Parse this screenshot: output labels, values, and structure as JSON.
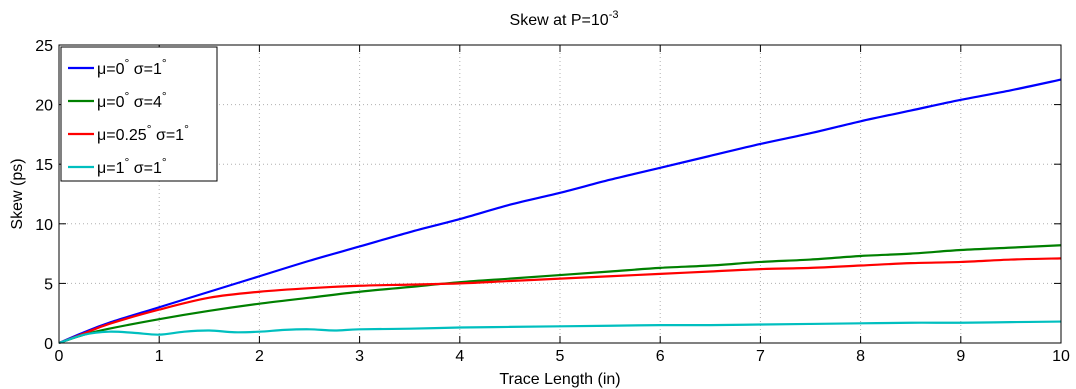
{
  "chart_data": {
    "type": "line",
    "title": {
      "main": "Skew at P=10",
      "exponent": "-3"
    },
    "xlabel": "Trace Length (in)",
    "ylabel": "Skew (ps)",
    "xlim": [
      0,
      10
    ],
    "ylim": [
      0,
      25
    ],
    "xticks": [
      0,
      1,
      2,
      3,
      4,
      5,
      6,
      7,
      8,
      9,
      10
    ],
    "yticks": [
      0,
      5,
      10,
      15,
      20,
      25
    ],
    "grid": true,
    "legend_position": "top-left",
    "series": [
      {
        "name": "μ=0° σ=1°",
        "legend": {
          "mu": "0",
          "sigma": "1"
        },
        "color": "#0000ff",
        "x": [
          0,
          0.25,
          0.5,
          1,
          1.5,
          2,
          2.5,
          3,
          3.5,
          4,
          4.5,
          5,
          5.5,
          6,
          6.5,
          7,
          7.5,
          8,
          8.5,
          9,
          9.5,
          10
        ],
        "y": [
          0,
          0.9,
          1.7,
          3.0,
          4.3,
          5.6,
          6.9,
          8.1,
          9.3,
          10.4,
          11.6,
          12.6,
          13.7,
          14.7,
          15.7,
          16.7,
          17.6,
          18.6,
          19.5,
          20.4,
          21.2,
          22.1
        ]
      },
      {
        "name": "μ=0° σ=4°",
        "legend": {
          "mu": "0",
          "sigma": "4"
        },
        "color": "#008000",
        "x": [
          0,
          0.25,
          0.5,
          1,
          1.5,
          2,
          2.5,
          3,
          3.5,
          4,
          4.5,
          5,
          5.5,
          6,
          6.5,
          7,
          7.5,
          8,
          8.5,
          9,
          9.5,
          10
        ],
        "y": [
          0,
          0.7,
          1.2,
          2.0,
          2.7,
          3.3,
          3.8,
          4.3,
          4.7,
          5.1,
          5.4,
          5.7,
          6.0,
          6.3,
          6.5,
          6.8,
          7.0,
          7.3,
          7.5,
          7.8,
          8.0,
          8.2
        ]
      },
      {
        "name": "μ=0.25° σ=1°",
        "legend": {
          "mu": "0.25",
          "sigma": "1"
        },
        "color": "#ff0000",
        "x": [
          0,
          0.25,
          0.5,
          1,
          1.5,
          2,
          2.5,
          3,
          3.5,
          4,
          4.5,
          5,
          5.5,
          6,
          6.5,
          7,
          7.5,
          8,
          8.5,
          9,
          9.5,
          10
        ],
        "y": [
          0,
          0.8,
          1.6,
          2.8,
          3.8,
          4.3,
          4.6,
          4.8,
          4.9,
          5.0,
          5.2,
          5.4,
          5.6,
          5.8,
          6.0,
          6.2,
          6.3,
          6.5,
          6.7,
          6.8,
          7.0,
          7.1
        ]
      },
      {
        "name": "μ=1° σ=1°",
        "legend": {
          "mu": "1",
          "sigma": "1"
        },
        "color": "#00bfbf",
        "x": [
          0,
          0.25,
          0.5,
          0.75,
          1,
          1.25,
          1.5,
          1.75,
          2,
          2.25,
          2.5,
          2.75,
          3,
          3.5,
          4,
          4.5,
          5,
          5.5,
          6,
          6.5,
          7,
          7.5,
          8,
          8.5,
          9,
          9.5,
          10
        ],
        "y": [
          0,
          0.7,
          0.95,
          0.85,
          0.7,
          0.95,
          1.05,
          0.9,
          0.95,
          1.1,
          1.15,
          1.05,
          1.15,
          1.2,
          1.3,
          1.35,
          1.4,
          1.45,
          1.5,
          1.5,
          1.55,
          1.6,
          1.65,
          1.7,
          1.7,
          1.75,
          1.8
        ]
      }
    ]
  }
}
